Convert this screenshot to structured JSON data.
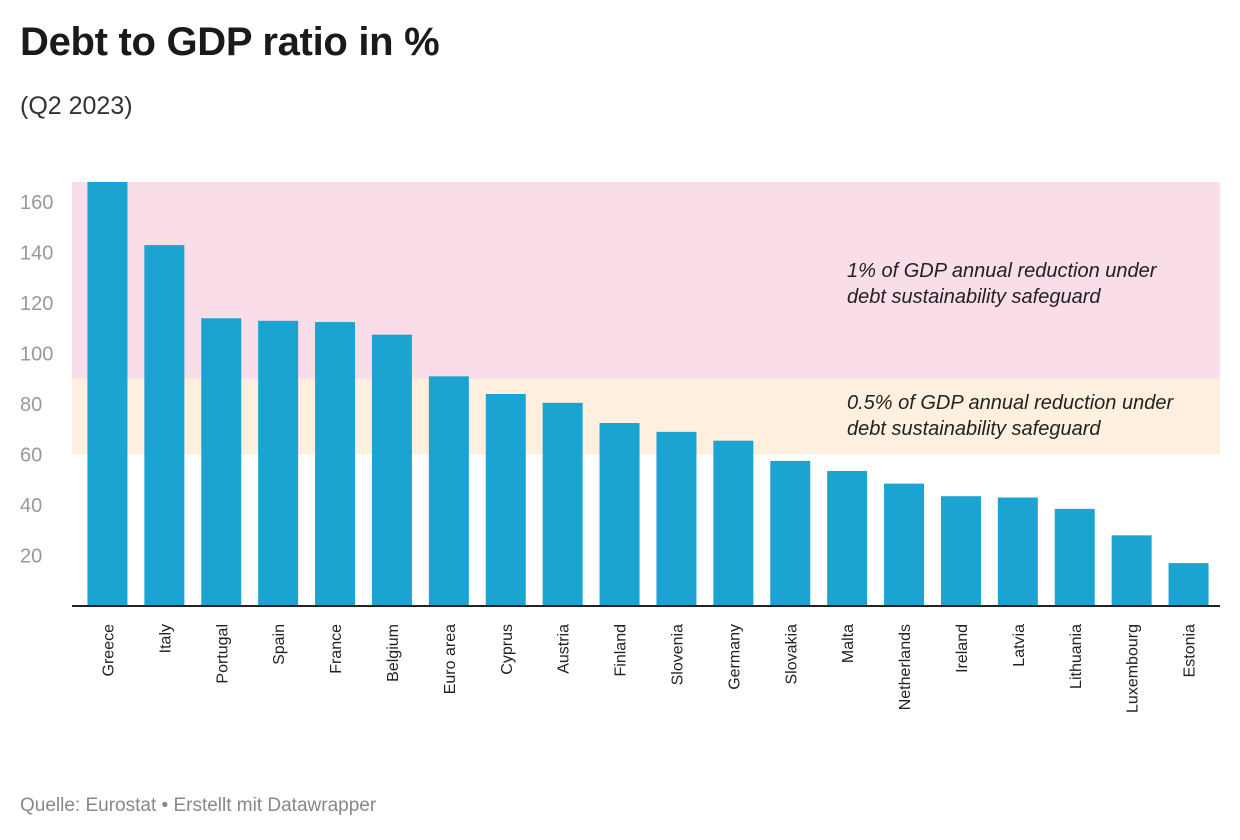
{
  "header": {
    "title": "Debt to GDP ratio in %",
    "subtitle": "(Q2 2023)"
  },
  "footer": {
    "source": "Quelle: Eurostat • Erstellt mit Datawrapper"
  },
  "colors": {
    "bar": "#1ba3d1",
    "band_high": "#f9dde9",
    "band_mid": "#feefdf",
    "axis": "#222222",
    "tick_text": "#999999"
  },
  "chart_data": {
    "type": "bar",
    "categories": [
      "Greece",
      "Italy",
      "Portugal",
      "Spain",
      "France",
      "Belgium",
      "Euro area",
      "Cyprus",
      "Austria",
      "Finland",
      "Slovenia",
      "Germany",
      "Slovakia",
      "Malta",
      "Netherlands",
      "Ireland",
      "Latvia",
      "Lithuania",
      "Luxembourg",
      "Estonia"
    ],
    "values": [
      168,
      143,
      114,
      113,
      112.5,
      107.5,
      91,
      84,
      80.5,
      72.5,
      69,
      65.5,
      57.5,
      53.5,
      48.5,
      43.5,
      43,
      38.5,
      28,
      17
    ],
    "ylim": [
      0,
      168
    ],
    "yticks": [
      20,
      40,
      60,
      80,
      100,
      120,
      140,
      160
    ],
    "bands": [
      {
        "from": 90,
        "to": 168,
        "label_line1": "1% of GDP annual reduction under",
        "label_line2": "debt sustainability safeguard"
      },
      {
        "from": 60,
        "to": 90,
        "label_line1": "0.5% of GDP annual reduction under",
        "label_line2": "debt sustainability safeguard"
      }
    ],
    "grid": false
  }
}
